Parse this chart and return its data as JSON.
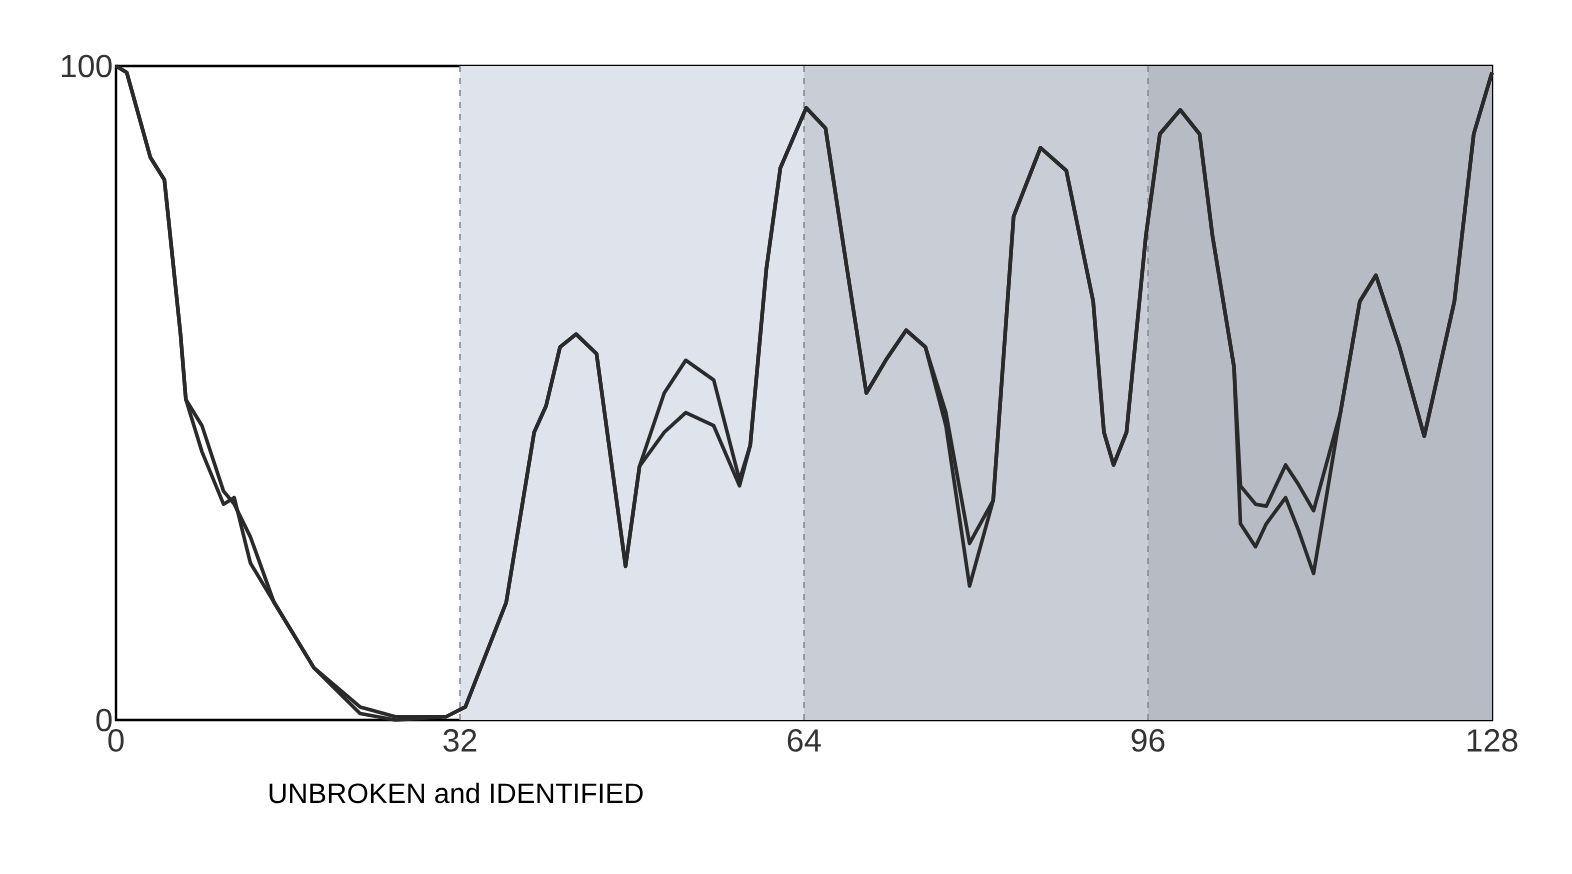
{
  "chart_data": {
    "type": "line",
    "xlabel": "UNBROKEN and IDENTIFIED",
    "xlim": [
      0,
      128
    ],
    "ylim": [
      0,
      100
    ],
    "xticks": [
      0,
      32,
      64,
      96,
      128
    ],
    "yticks": [
      0,
      100
    ],
    "grid": false,
    "marker": "none",
    "line_style": "solid",
    "bands": [
      {
        "axis": "x",
        "from": 32,
        "to": 64,
        "color": "#dfe3ec"
      },
      {
        "axis": "x",
        "from": 64,
        "to": 96,
        "color": "#c9cdd5"
      },
      {
        "axis": "x",
        "from": 96,
        "to": 128,
        "color": "#b7bbc3"
      }
    ],
    "ref_lines": [
      {
        "axis": "x",
        "value": 32,
        "color": "#8a8a8a",
        "line_style": "dashed"
      },
      {
        "axis": "x",
        "value": 64,
        "color": "#8a8a8a",
        "line_style": "dashed"
      },
      {
        "axis": "x",
        "value": 96,
        "color": "#8a8a8a",
        "line_style": "dashed"
      }
    ],
    "x": [
      0,
      1,
      3.2,
      4.5,
      6,
      6.5,
      8,
      10,
      11,
      12.5,
      14.7,
      18.4,
      22.7,
      26,
      30.7,
      32.5,
      36.3,
      38.9,
      40,
      41.3,
      42.8,
      44.7,
      47.4,
      48.7,
      51,
      53,
      55.6,
      58,
      59,
      60.5,
      61.8,
      64.2,
      66,
      68,
      69.8,
      71.6,
      73.5,
      75.3,
      77.2,
      79.4,
      81.6,
      83.5,
      86,
      88.4,
      90.9,
      91.9,
      92.8,
      94,
      95.8,
      97.1,
      99,
      100.8,
      102,
      104,
      104.6,
      106,
      107,
      108.8,
      110,
      111.4,
      113.9,
      115.7,
      117.2,
      119.4,
      121.7,
      124.5,
      126.3,
      128
    ],
    "series": [
      {
        "color": "#2a2a2a",
        "values": [
          100,
          99,
          86,
          82.6,
          59,
          49,
          45,
          35,
          33,
          28,
          18,
          8,
          2,
          0.5,
          0.5,
          2,
          18,
          44,
          48,
          57,
          59,
          56,
          23.5,
          38.8,
          50,
          55,
          52,
          36.7,
          42,
          69,
          84.4,
          93.6,
          90.5,
          69,
          50,
          55,
          59.6,
          57,
          47,
          27,
          33.6,
          77,
          87.5,
          84,
          64,
          44,
          39,
          44,
          74,
          89.6,
          93.3,
          89.6,
          74,
          54,
          35.8,
          33,
          32.7,
          39,
          36,
          32,
          47,
          64,
          68,
          57,
          43.4,
          64,
          89.6,
          99
        ]
      },
      {
        "color": "#2a2a2a",
        "values": [
          100,
          99,
          86,
          82.6,
          59,
          49,
          41,
          33,
          34,
          24,
          18,
          8,
          1,
          0,
          0.5,
          2,
          18,
          44,
          48,
          57,
          59,
          56,
          23.5,
          38.8,
          44,
          47,
          45,
          35.8,
          42,
          69,
          84.4,
          93.6,
          90.5,
          69,
          50,
          55,
          59.6,
          57,
          45,
          20.5,
          33.6,
          77,
          87.5,
          84,
          64,
          44,
          39,
          44,
          74,
          89.6,
          93.3,
          89.6,
          74,
          54,
          30,
          26.5,
          30,
          34,
          29,
          22.4,
          47,
          64,
          68,
          57,
          43.4,
          64,
          89.6,
          99
        ]
      }
    ]
  }
}
